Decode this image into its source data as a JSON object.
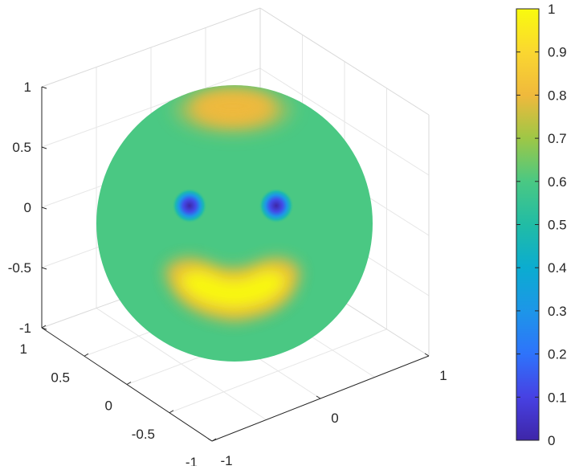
{
  "chart_data": {
    "type": "surface",
    "description_text": "",
    "axes": {
      "x": {
        "range": [
          -1,
          1
        ],
        "ticks": [
          -1,
          0,
          1
        ],
        "tick_labels": [
          "-1",
          "0",
          "1"
        ]
      },
      "y": {
        "range": [
          -1,
          1
        ],
        "ticks": [
          -1,
          -0.5,
          0,
          0.5,
          1
        ],
        "tick_labels": [
          "-1",
          "-0.5",
          "0",
          "0.5",
          "1"
        ]
      },
      "z": {
        "range": [
          -1,
          1
        ],
        "ticks": [
          -1,
          -0.5,
          0,
          0.5,
          1
        ],
        "tick_labels": [
          "-1",
          "-0.5",
          "0",
          "0.5",
          "1"
        ]
      }
    },
    "grid": true,
    "surface": "unit sphere colored by scalar value",
    "base_value": 0.6,
    "features": [
      {
        "name": "hat",
        "value": 0.8
      },
      {
        "name": "left-eye",
        "value": 0.0
      },
      {
        "name": "right-eye",
        "value": 0.0
      },
      {
        "name": "mouth",
        "value": 1.0
      }
    ],
    "colorbar": {
      "colormap": "parula",
      "clim": [
        0,
        1
      ],
      "ticks": [
        0,
        0.1,
        0.2,
        0.3,
        0.4,
        0.5,
        0.6,
        0.7,
        0.8,
        0.9,
        1
      ],
      "tick_labels": [
        "0",
        "0.1",
        "0.2",
        "0.3",
        "0.4",
        "0.5",
        "0.6",
        "0.7",
        "0.8",
        "0.9",
        "1"
      ],
      "placement": "right"
    }
  }
}
